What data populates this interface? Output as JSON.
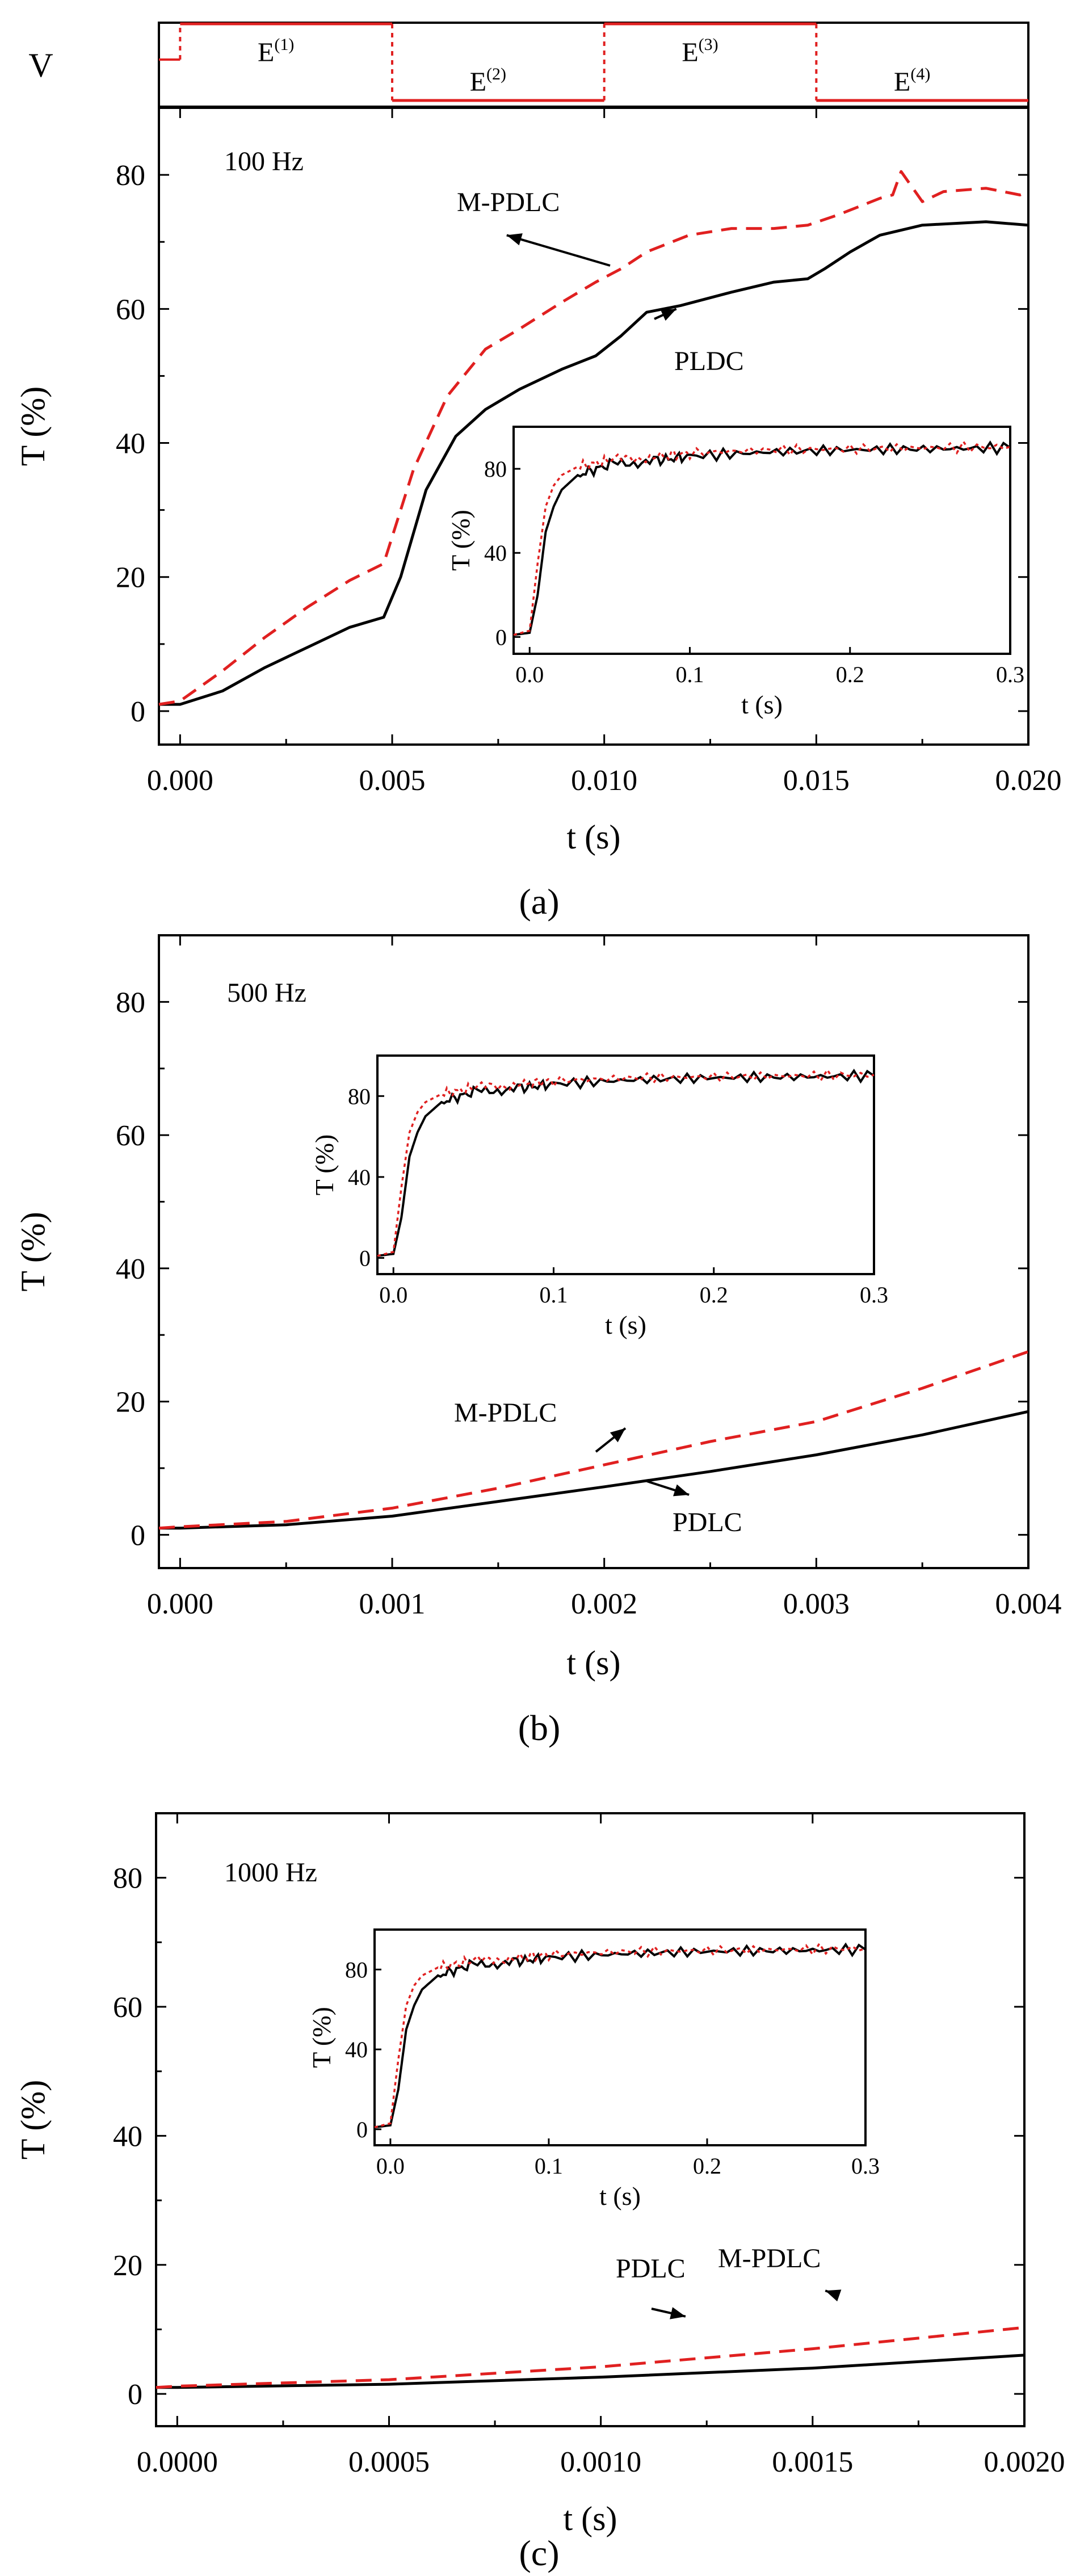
{
  "chart_data": [
    {
      "panel": "a",
      "type": "line",
      "caption": "(a)",
      "annotation": "100 Hz",
      "xlabel": "t (s)",
      "ylabel": "T (%)",
      "xlim": [
        -0.0005,
        0.02
      ],
      "ylim": [
        -5,
        90
      ],
      "xticks": [
        0.0,
        0.005,
        0.01,
        0.015,
        0.02
      ],
      "xtick_labels": [
        "0.000",
        "0.005",
        "0.010",
        "0.015",
        "0.020"
      ],
      "yticks": [
        0,
        20,
        40,
        60,
        80
      ],
      "ytick_labels": [
        "0",
        "20",
        "40",
        "60",
        "80"
      ],
      "series": [
        {
          "name": "PLDC",
          "color": "#000000",
          "dash": "solid",
          "x": [
            -0.0005,
            0,
            0.001,
            0.002,
            0.003,
            0.004,
            0.0048,
            0.0052,
            0.0058,
            0.0065,
            0.0072,
            0.008,
            0.009,
            0.0098,
            0.0104,
            0.011,
            0.0118,
            0.013,
            0.014,
            0.0148,
            0.0152,
            0.0158,
            0.0165,
            0.0175,
            0.019,
            0.02
          ],
          "y": [
            1,
            1,
            3,
            6.5,
            9.5,
            12.5,
            14,
            20,
            33,
            41,
            45,
            48,
            51,
            53,
            56,
            59.5,
            60.5,
            62.5,
            64,
            64.5,
            66,
            68.5,
            71,
            72.5,
            73,
            72.5
          ]
        },
        {
          "name": "M-PDLC",
          "color": "#e02020",
          "dash": "dashed",
          "x": [
            -0.0005,
            0,
            0.001,
            0.002,
            0.003,
            0.004,
            0.0048,
            0.0055,
            0.0063,
            0.0072,
            0.008,
            0.009,
            0.0098,
            0.0104,
            0.011,
            0.012,
            0.013,
            0.014,
            0.0148,
            0.0155,
            0.0165,
            0.0168,
            0.017,
            0.0175,
            0.018,
            0.019,
            0.0198,
            0.02
          ],
          "y": [
            1,
            1.5,
            6,
            11,
            15.5,
            19.5,
            22,
            36,
            47,
            54,
            57,
            61,
            64,
            66,
            68.5,
            71,
            72,
            72,
            72.5,
            74,
            76.5,
            77,
            80.5,
            76,
            77.5,
            78,
            77,
            77.5
          ]
        }
      ],
      "curve_labels": [
        {
          "text": "M-PDLC"
        },
        {
          "text": "PLDC"
        }
      ],
      "inset": {
        "xlabel": "t (s)",
        "ylabel": "T (%)",
        "xlim": [
          -0.01,
          0.3
        ],
        "ylim": [
          -8,
          100
        ],
        "xtick_labels": [
          "0.0",
          "0.1",
          "0.2",
          "0.3"
        ],
        "ytick_labels": [
          "0",
          "40",
          "80"
        ],
        "series": [
          {
            "name": "PDLC",
            "color": "#000000",
            "x": [
              -0.01,
              0,
              0.005,
              0.01,
              0.015,
              0.02,
              0.03,
              0.05,
              0.08,
              0.1,
              0.15,
              0.2,
              0.25,
              0.3
            ],
            "y": [
              1,
              2,
              20,
              50,
              62,
              70,
              77,
              82,
              84,
              86,
              88,
              89,
              89.5,
              90
            ]
          },
          {
            "name": "M-PDLC",
            "color": "#e02020",
            "x": [
              -0.01,
              0,
              0.005,
              0.01,
              0.015,
              0.02,
              0.03,
              0.05,
              0.08,
              0.1,
              0.15,
              0.2,
              0.25,
              0.3
            ],
            "y": [
              1,
              3,
              35,
              62,
              72,
              77,
              81,
              84,
              86,
              87.5,
              89,
              89.5,
              90,
              90.5
            ]
          }
        ]
      },
      "voltage_signal": {
        "ylabel": "V",
        "segments": [
          {
            "base": "E",
            "sup": "(1)",
            "level": "high"
          },
          {
            "base": "E",
            "sup": "(2)",
            "level": "low"
          },
          {
            "base": "E",
            "sup": "(3)",
            "level": "high"
          },
          {
            "base": "E",
            "sup": "(4)",
            "level": "low"
          }
        ]
      }
    },
    {
      "panel": "b",
      "type": "line",
      "caption": "(b)",
      "annotation": "500 Hz",
      "xlabel": "t (s)",
      "ylabel": "T (%)",
      "xlim": [
        -0.0001,
        0.004
      ],
      "ylim": [
        -5,
        90
      ],
      "xticks": [
        0.0,
        0.001,
        0.002,
        0.003,
        0.004
      ],
      "xtick_labels": [
        "0.000",
        "0.001",
        "0.002",
        "0.003",
        "0.004"
      ],
      "yticks": [
        0,
        20,
        40,
        60,
        80
      ],
      "ytick_labels": [
        "0",
        "20",
        "40",
        "60",
        "80"
      ],
      "series": [
        {
          "name": "PDLC",
          "color": "#000000",
          "dash": "solid",
          "x": [
            -0.0001,
            0,
            0.0005,
            0.001,
            0.0015,
            0.002,
            0.0025,
            0.003,
            0.0035,
            0.004
          ],
          "y": [
            1,
            1,
            1.5,
            2.8,
            5,
            7.2,
            9.5,
            12,
            15,
            18.5
          ]
        },
        {
          "name": "M-PDLC",
          "color": "#e02020",
          "dash": "dashed",
          "x": [
            -0.0001,
            0,
            0.0005,
            0.001,
            0.0015,
            0.002,
            0.0025,
            0.003,
            0.0035,
            0.004
          ],
          "y": [
            1,
            1.2,
            2,
            4,
            7,
            10.5,
            14,
            17,
            22,
            27.5
          ]
        }
      ],
      "curve_labels": [
        {
          "text": "M-PDLC"
        },
        {
          "text": "PDLC"
        }
      ],
      "inset": {
        "xlabel": "t (s)",
        "ylabel": "T (%)",
        "xlim": [
          -0.01,
          0.3
        ],
        "ylim": [
          -8,
          100
        ],
        "xtick_labels": [
          "0.0",
          "0.1",
          "0.2",
          "0.3"
        ],
        "ytick_labels": [
          "0",
          "40",
          "80"
        ],
        "series": [
          {
            "name": "PDLC",
            "color": "#000000",
            "x": [
              -0.01,
              0,
              0.005,
              0.01,
              0.015,
              0.02,
              0.03,
              0.05,
              0.08,
              0.1,
              0.15,
              0.2,
              0.25,
              0.3
            ],
            "y": [
              1,
              2,
              20,
              50,
              62,
              70,
              77,
              82,
              84,
              86,
              88,
              89,
              89.5,
              90
            ]
          },
          {
            "name": "M-PDLC",
            "color": "#e02020",
            "x": [
              -0.01,
              0,
              0.005,
              0.01,
              0.015,
              0.02,
              0.03,
              0.05,
              0.08,
              0.1,
              0.15,
              0.2,
              0.25,
              0.3
            ],
            "y": [
              1,
              3,
              35,
              62,
              72,
              77,
              81,
              84,
              86,
              87.5,
              89,
              89.5,
              90,
              90.5
            ]
          }
        ]
      }
    },
    {
      "panel": "c",
      "type": "line",
      "caption": "(c)",
      "annotation": "1000 Hz",
      "xlabel": "t (s)",
      "ylabel": "T (%)",
      "xlim": [
        -5e-05,
        0.002
      ],
      "ylim": [
        -5,
        90
      ],
      "xticks": [
        0.0,
        0.0005,
        0.001,
        0.0015,
        0.002
      ],
      "xtick_labels": [
        "0.0000",
        "0.0005",
        "0.0010",
        "0.0015",
        "0.0020"
      ],
      "yticks": [
        0,
        20,
        40,
        60,
        80
      ],
      "ytick_labels": [
        "0",
        "20",
        "40",
        "60",
        "80"
      ],
      "series": [
        {
          "name": "PDLC",
          "color": "#000000",
          "dash": "solid",
          "x": [
            -5e-05,
            0,
            0.0005,
            0.001,
            0.0015,
            0.002
          ],
          "y": [
            1,
            1,
            1.5,
            2.6,
            4,
            6
          ]
        },
        {
          "name": "M-PDLC",
          "color": "#e02020",
          "dash": "dashed",
          "x": [
            -5e-05,
            0,
            0.0005,
            0.001,
            0.0015,
            0.002
          ],
          "y": [
            1,
            1.2,
            2.2,
            4.2,
            7,
            10.3
          ]
        }
      ],
      "curve_labels": [
        {
          "text": "PDLC"
        },
        {
          "text": "M-PDLC"
        }
      ],
      "inset": {
        "xlabel": "t (s)",
        "ylabel": "T (%)",
        "xlim": [
          -0.01,
          0.3
        ],
        "ylim": [
          -8,
          100
        ],
        "xtick_labels": [
          "0.0",
          "0.1",
          "0.2",
          "0.3"
        ],
        "ytick_labels": [
          "0",
          "40",
          "80"
        ],
        "series": [
          {
            "name": "PDLC",
            "color": "#000000",
            "x": [
              -0.01,
              0,
              0.005,
              0.01,
              0.015,
              0.02,
              0.03,
              0.05,
              0.08,
              0.1,
              0.15,
              0.2,
              0.25,
              0.3
            ],
            "y": [
              1,
              2,
              20,
              50,
              62,
              70,
              77,
              82,
              84,
              86,
              88,
              89,
              89.5,
              90
            ]
          },
          {
            "name": "M-PDLC",
            "color": "#e02020",
            "x": [
              -0.01,
              0,
              0.005,
              0.01,
              0.015,
              0.02,
              0.03,
              0.05,
              0.08,
              0.1,
              0.15,
              0.2,
              0.25,
              0.3
            ],
            "y": [
              1,
              3,
              35,
              62,
              72,
              77,
              81,
              84,
              86,
              87.5,
              89,
              89.5,
              90,
              90.5
            ]
          }
        ]
      }
    }
  ]
}
